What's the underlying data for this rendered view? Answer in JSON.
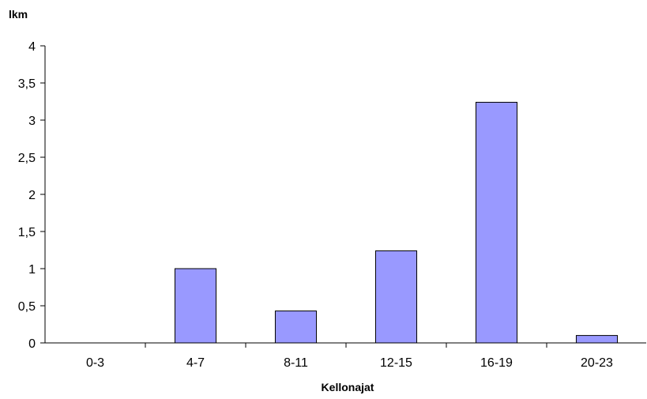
{
  "chart_data": {
    "type": "bar",
    "title": "",
    "ylabel": "lkm",
    "xlabel": "Kellonajat",
    "categories": [
      "0-3",
      "4-7",
      "8-11",
      "12-15",
      "16-19",
      "20-23"
    ],
    "values": [
      0,
      1,
      0.43,
      1.24,
      3.24,
      0.1
    ],
    "ylim": [
      0,
      4
    ],
    "yticks": [
      "0",
      "0,5",
      "1",
      "1,5",
      "2",
      "2,5",
      "3",
      "3,5",
      "4"
    ],
    "grid": false,
    "legend": "none",
    "colors": {
      "bar_fill": "#9999ff",
      "bar_stroke": "#000000",
      "axis": "#000000"
    }
  }
}
